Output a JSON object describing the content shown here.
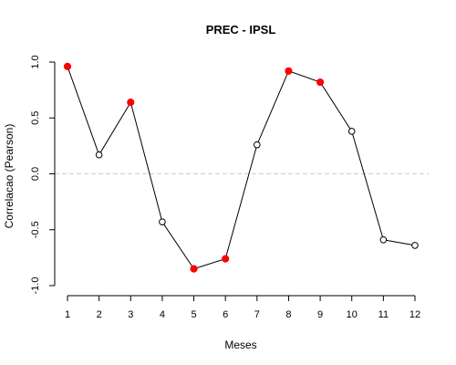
{
  "chart_data": {
    "type": "line",
    "title": "PREC - IPSL",
    "xlabel": "Meses",
    "ylabel": "Correlacao (Pearson)",
    "x": [
      1,
      2,
      3,
      4,
      5,
      6,
      7,
      8,
      9,
      10,
      11,
      12
    ],
    "x_tick_labels": [
      "1",
      "2",
      "3",
      "4",
      "5",
      "6",
      "7",
      "8",
      "9",
      "10",
      "11",
      "12"
    ],
    "y_ticks": [
      -1.0,
      -0.5,
      0.0,
      0.5,
      1.0
    ],
    "y_tick_labels": [
      "-1.0",
      "-0.5",
      "0.0",
      "0.5",
      "1.0"
    ],
    "xlim": [
      1,
      12
    ],
    "ylim": [
      -1.0,
      1.0
    ],
    "reference_line": {
      "y": 0.0,
      "style": "dashed",
      "color": "#cccccc"
    },
    "series": [
      {
        "values": [
          0.96,
          0.17,
          0.64,
          -0.43,
          -0.85,
          -0.76,
          0.26,
          0.92,
          0.82,
          0.38,
          -0.59,
          -0.64
        ],
        "highlighted": [
          true,
          false,
          true,
          false,
          true,
          true,
          false,
          true,
          true,
          false,
          false,
          false
        ],
        "highlight_color": "#ff0000",
        "line_color": "#000000",
        "marker": "circle"
      }
    ],
    "grid": false,
    "legend": "none"
  }
}
